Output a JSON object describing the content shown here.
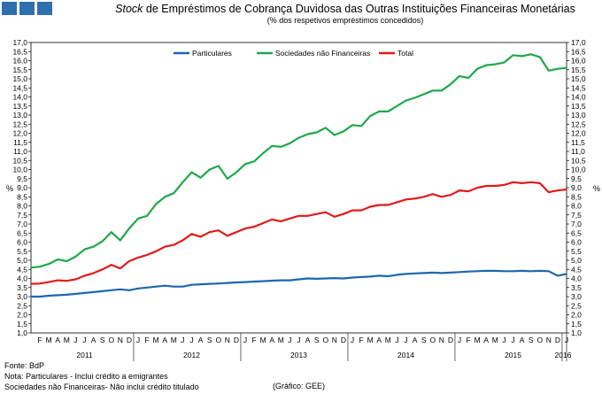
{
  "header": {
    "title_italic": "Stock",
    "title_rest": "de Empréstimos de Cobrança Duvidosa das Outras Instituições Financeiras Monetárias",
    "subtitle": "(% dos respetivos empréstimos concedidos)"
  },
  "footer": {
    "source": "Fonte: BdP",
    "note1": "Nota: Particulares - Inclui crédito a emigrantes",
    "note2": "Sociedades não Financeiras- Não inclui crédito titulado",
    "credit": "(Gráfico: GEE)"
  },
  "colors": {
    "particulares": "#1f66b0",
    "snf": "#1fa84a",
    "total": "#e01b1b"
  },
  "chart_data": {
    "type": "line",
    "title": "Stock de Empréstimos de Cobrança Duvidosa das Outras Instituições Financeiras Monetárias",
    "subtitle": "(% dos respetivos empréstimos concedidos)",
    "ylabel": "%",
    "ylim": [
      1.0,
      17.0
    ],
    "ytick_step": 0.5,
    "grid": false,
    "legend": "top-center",
    "month_labels": [
      "J",
      "F",
      "M",
      "A",
      "M",
      "J",
      "J",
      "A",
      "S",
      "O",
      "N",
      "D"
    ],
    "years": [
      "2011",
      "2012",
      "2013",
      "2014",
      "2015",
      "2016"
    ],
    "x_start": "2011-01",
    "x_end": "2016-01",
    "series": [
      {
        "name": "Particulares",
        "color": "#1f66b0",
        "values": [
          3.0,
          3.0,
          3.05,
          3.08,
          3.1,
          3.15,
          3.2,
          3.25,
          3.3,
          3.35,
          3.4,
          3.35,
          3.45,
          3.5,
          3.55,
          3.6,
          3.55,
          3.55,
          3.65,
          3.68,
          3.7,
          3.72,
          3.75,
          3.78,
          3.8,
          3.83,
          3.85,
          3.88,
          3.9,
          3.9,
          3.95,
          4.0,
          3.98,
          4.0,
          4.02,
          4.0,
          4.05,
          4.08,
          4.1,
          4.15,
          4.12,
          4.2,
          4.25,
          4.28,
          4.3,
          4.32,
          4.3,
          4.32,
          4.35,
          4.38,
          4.4,
          4.42,
          4.42,
          4.4,
          4.4,
          4.42,
          4.4,
          4.42,
          4.4,
          4.15,
          4.25
        ]
      },
      {
        "name": "Sociedades não Financeiras",
        "color": "#1fa84a",
        "values": [
          4.6,
          4.65,
          4.8,
          5.05,
          4.95,
          5.2,
          5.6,
          5.75,
          6.05,
          6.55,
          6.1,
          6.75,
          7.3,
          7.45,
          8.1,
          8.5,
          8.7,
          9.3,
          9.85,
          9.55,
          10.0,
          10.2,
          9.5,
          9.85,
          10.3,
          10.45,
          10.9,
          11.3,
          11.25,
          11.45,
          11.75,
          11.95,
          12.05,
          12.3,
          11.9,
          12.1,
          12.45,
          12.4,
          12.95,
          13.2,
          13.2,
          13.5,
          13.8,
          13.95,
          14.15,
          14.35,
          14.35,
          14.7,
          15.15,
          15.05,
          15.55,
          15.75,
          15.8,
          15.9,
          16.3,
          16.25,
          16.35,
          16.2,
          15.45,
          15.55,
          15.6
        ]
      },
      {
        "name": "Total",
        "color": "#e01b1b",
        "values": [
          3.7,
          3.72,
          3.8,
          3.9,
          3.87,
          3.95,
          4.15,
          4.3,
          4.5,
          4.75,
          4.55,
          4.95,
          5.15,
          5.3,
          5.5,
          5.75,
          5.85,
          6.1,
          6.45,
          6.3,
          6.55,
          6.65,
          6.35,
          6.55,
          6.75,
          6.85,
          7.05,
          7.25,
          7.15,
          7.3,
          7.45,
          7.45,
          7.55,
          7.65,
          7.4,
          7.55,
          7.75,
          7.75,
          7.95,
          8.05,
          8.05,
          8.2,
          8.35,
          8.4,
          8.5,
          8.65,
          8.5,
          8.6,
          8.85,
          8.8,
          9.0,
          9.1,
          9.1,
          9.15,
          9.3,
          9.25,
          9.3,
          9.25,
          8.75,
          8.85,
          8.9
        ]
      }
    ]
  }
}
